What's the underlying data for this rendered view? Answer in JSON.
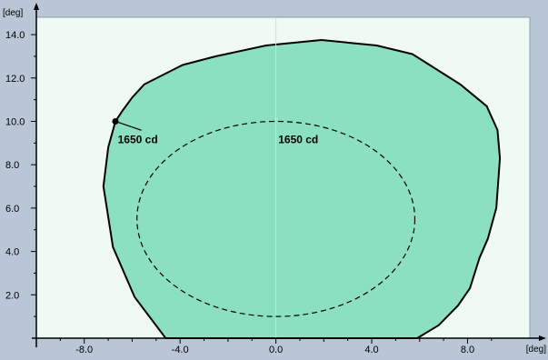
{
  "chart_data": {
    "type": "area",
    "x_unit": "[deg]",
    "y_unit": "[deg]",
    "xlim": [
      -10.0,
      10.6
    ],
    "ylim": [
      0.0,
      14.8
    ],
    "x_ticks": [
      -8.0,
      -4.0,
      0.0,
      4.0,
      8.0
    ],
    "x_tick_labels": [
      "-8.0",
      "-4.0",
      "0.0",
      "4.0",
      "8.0"
    ],
    "y_ticks": [
      2.0,
      4.0,
      6.0,
      8.0,
      10.0,
      12.0,
      14.0
    ],
    "y_tick_labels": [
      "2.0",
      "4.0",
      "6.0",
      "8.0",
      "10.0",
      "12.0",
      "14.0"
    ],
    "grid": false,
    "colors": {
      "page_background": "#b9c6d6",
      "plot_background": "#eefaf2",
      "fill": "#8be0c0",
      "outline": "#000000",
      "center_line": "#c8e4da"
    },
    "series": [
      {
        "style": "filled-solid",
        "x": [
          -4.6,
          -5.9,
          -6.8,
          -7.2,
          -7.0,
          -6.7,
          -6.4,
          -6.0,
          -5.5,
          -3.9,
          -2.5,
          -0.4,
          1.9,
          4.2,
          5.7,
          7.7,
          8.8,
          9.25,
          9.35,
          9.2,
          8.85,
          8.5,
          8.1,
          7.6,
          6.8,
          5.9
        ],
        "y": [
          0.0,
          1.9,
          4.2,
          7.0,
          8.8,
          10.0,
          10.5,
          11.1,
          11.7,
          12.6,
          13.0,
          13.5,
          13.75,
          13.5,
          13.1,
          11.7,
          10.7,
          9.6,
          8.3,
          6.0,
          4.6,
          3.7,
          2.3,
          1.5,
          0.6,
          0.0
        ]
      },
      {
        "style": "dashed-ellipse",
        "center": [
          0.0,
          5.5
        ],
        "radius_x": 5.8,
        "radius_y": 4.5
      }
    ],
    "marker": {
      "x": -6.7,
      "y": 10.0
    },
    "annotations": [
      {
        "text": "1650 cd",
        "x": -6.6,
        "y": 9.0
      },
      {
        "text": "1650 cd",
        "x": 0.1,
        "y": 9.0
      }
    ]
  }
}
